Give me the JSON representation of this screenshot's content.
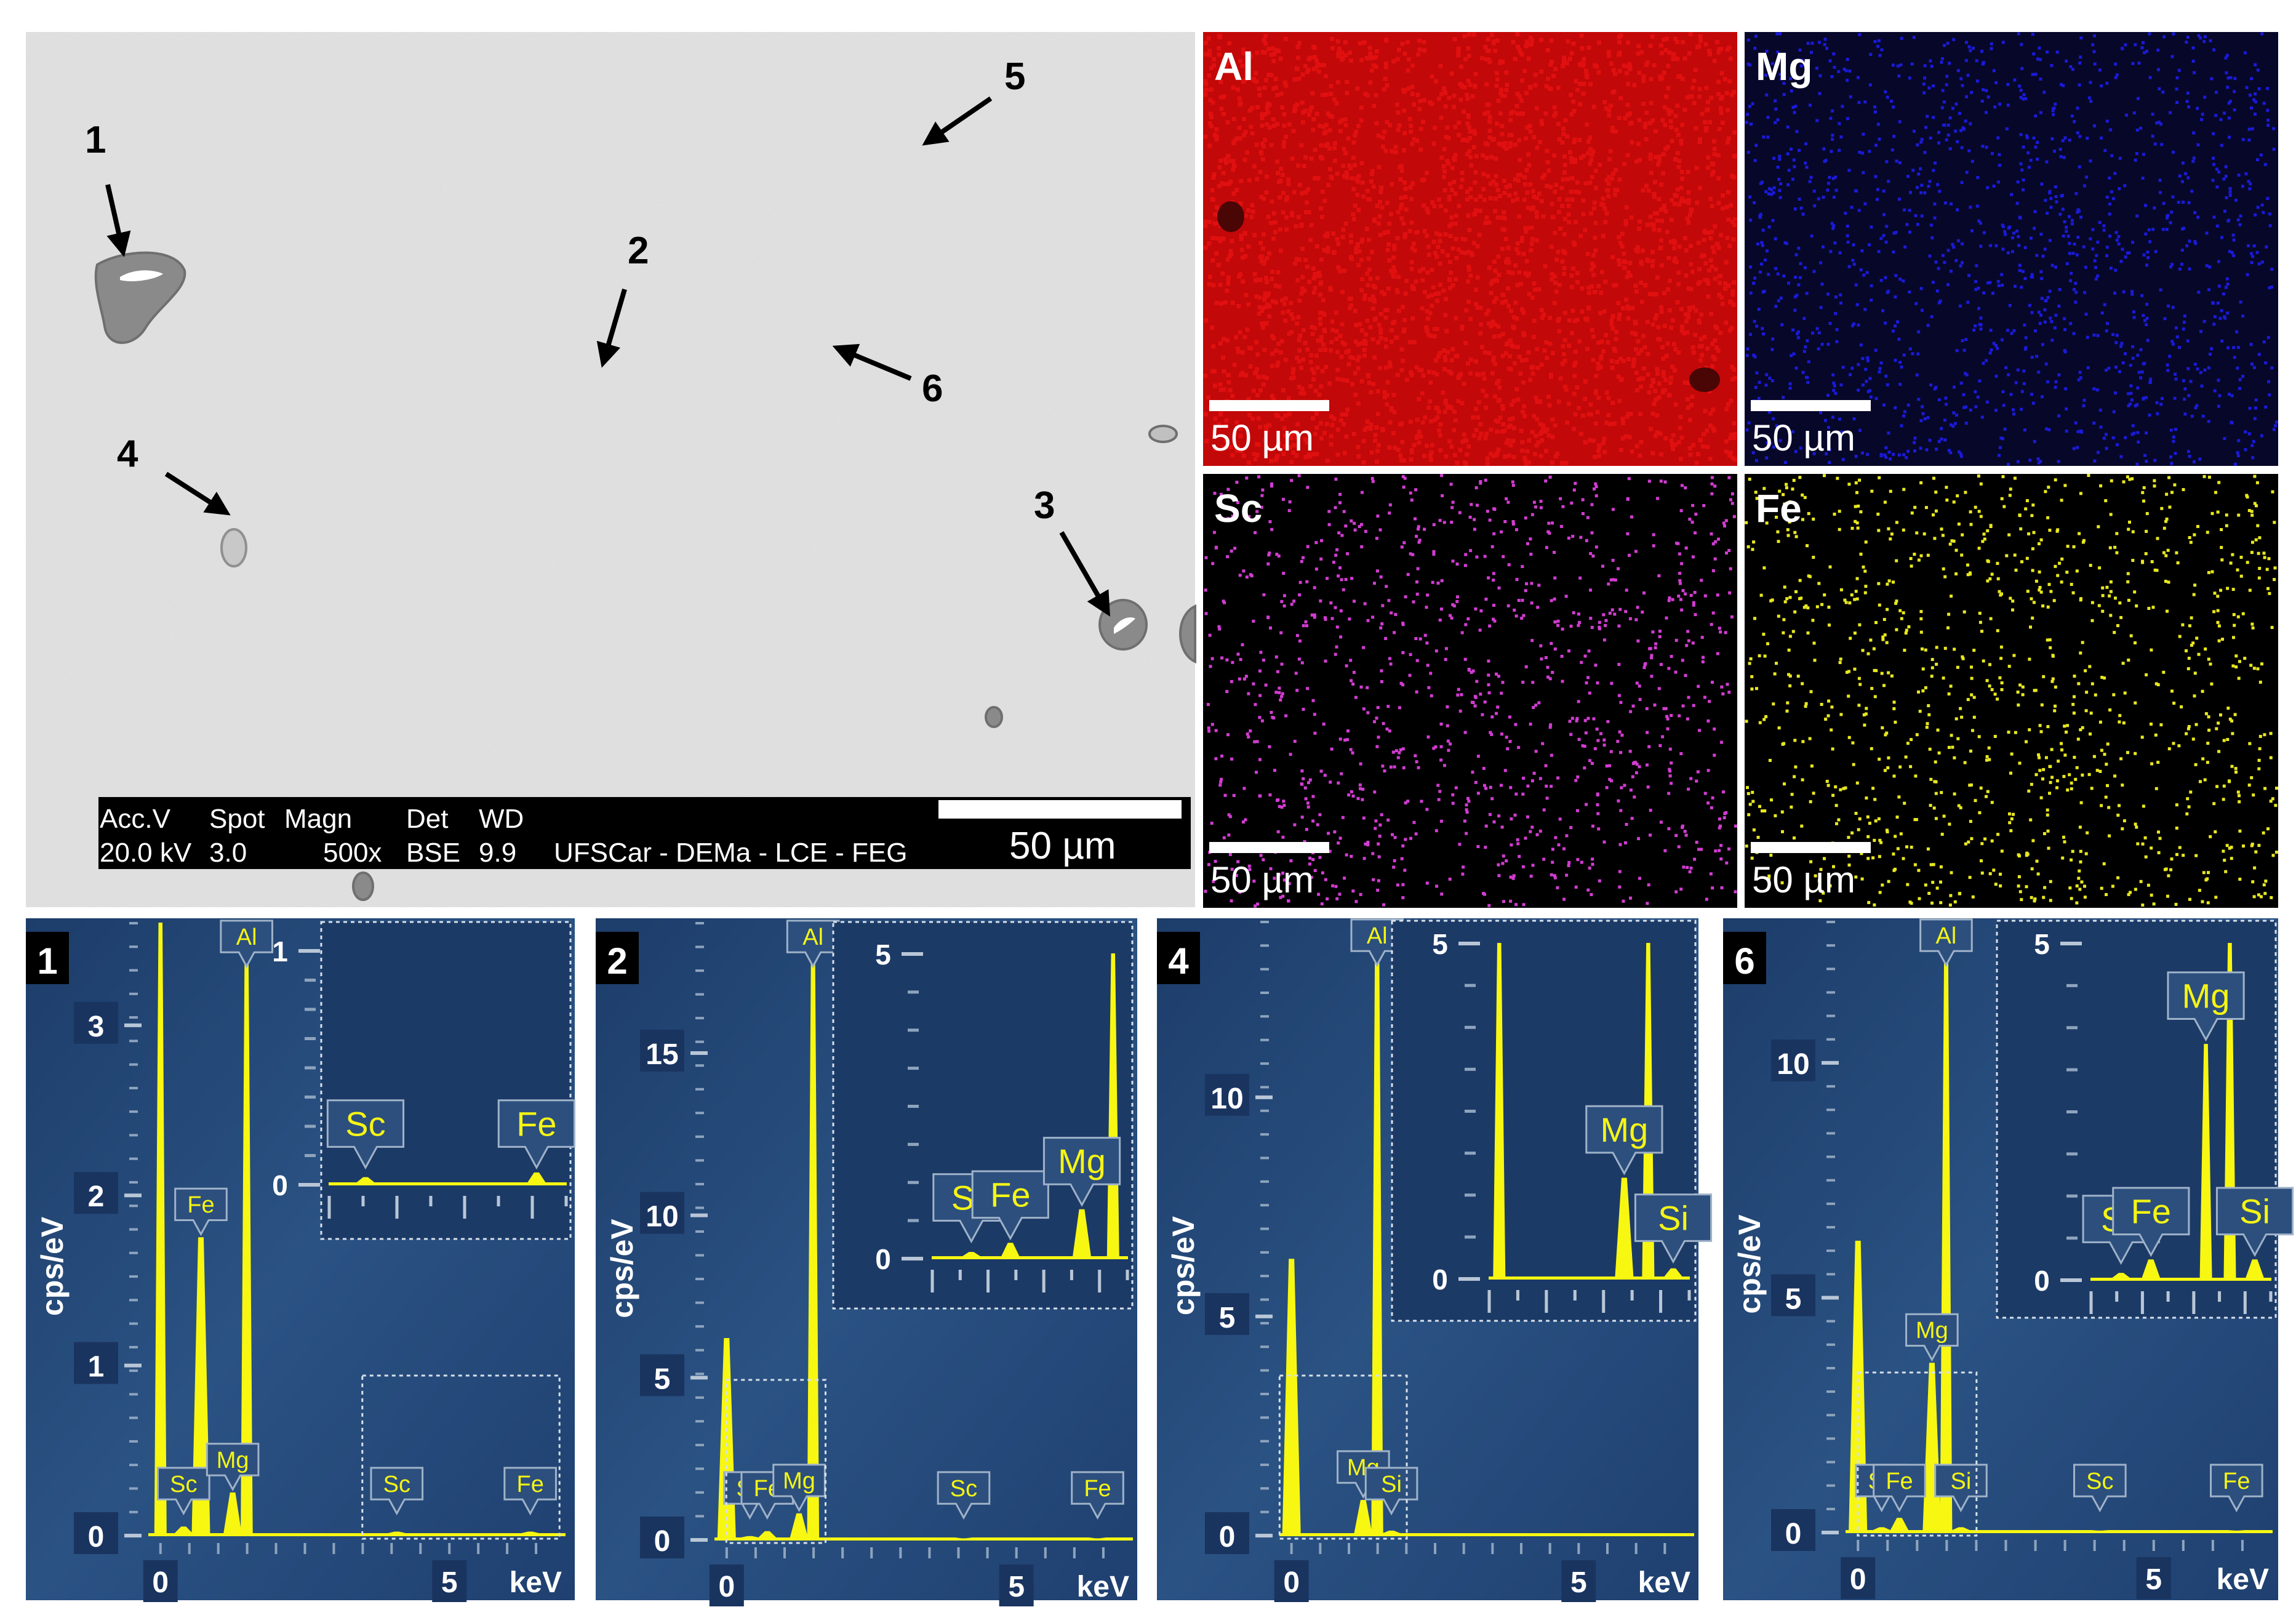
{
  "sem": {
    "markers": [
      "1",
      "2",
      "3",
      "4",
      "5",
      "6"
    ],
    "databar": {
      "headers": [
        "Acc.V",
        "Spot",
        "Magn",
        "Det",
        "WD"
      ],
      "values": [
        "20.0 kV",
        "3.0",
        "500x",
        "BSE",
        "9.9"
      ],
      "lab": "UFSCar - DEMa - LCE - FEG",
      "scale": "50 µm"
    },
    "colors": {
      "background": "#dcdcdc",
      "particle": "#8a8a8a"
    }
  },
  "maps": [
    {
      "element": "Al",
      "scale": "50 µm",
      "color": "#e01010",
      "bg": "#c20808"
    },
    {
      "element": "Mg",
      "scale": "50 µm",
      "color": "#1a1ad8",
      "bg": "#07072a"
    },
    {
      "element": "Sc",
      "scale": "50 µm",
      "color": "#d23cd2",
      "bg": "#000000"
    },
    {
      "element": "Fe",
      "scale": "50 µm",
      "color": "#e8e820",
      "bg": "#000000"
    }
  ],
  "chart_data": [
    {
      "type": "line",
      "panel": "1",
      "xlabel": "keV",
      "ylabel": "cps/eV",
      "x_ticks": [
        "0",
        "5"
      ],
      "xlim": [
        -0.2,
        7.0
      ],
      "ylim": [
        0,
        3.6
      ],
      "y_ticks": [
        "0",
        "1",
        "2",
        "3"
      ],
      "peaks": [
        {
          "label": "",
          "energy": 0.0,
          "height": 3.6
        },
        {
          "label": "Sc",
          "energy": 0.4,
          "height": 0.05
        },
        {
          "label": "Fe",
          "energy": 0.7,
          "height": 1.75
        },
        {
          "label": "Mg",
          "energy": 1.25,
          "height": 0.25
        },
        {
          "label": "Al",
          "energy": 1.49,
          "height": 3.4
        },
        {
          "label": "Sc",
          "energy": 4.09,
          "height": 0.02
        },
        {
          "label": "Fe",
          "energy": 6.4,
          "height": 0.02
        }
      ],
      "inset": {
        "xlim": [
          3.6,
          6.8
        ],
        "ylim": [
          0,
          1.0
        ],
        "y_ticks": [
          "0",
          "1"
        ],
        "peaks": [
          {
            "label": "Sc",
            "energy": 4.09,
            "height": 0.03
          },
          {
            "label": "Fe",
            "energy": 6.4,
            "height": 0.05
          }
        ]
      }
    },
    {
      "type": "line",
      "panel": "2",
      "xlabel": "keV",
      "ylabel": "cps/eV",
      "x_ticks": [
        "0",
        "5"
      ],
      "xlim": [
        -0.2,
        7.0
      ],
      "ylim": [
        0,
        19
      ],
      "y_ticks": [
        "0",
        "5",
        "10",
        "15"
      ],
      "peaks": [
        {
          "label": "",
          "energy": 0.0,
          "height": 6.2
        },
        {
          "label": "Sc",
          "energy": 0.4,
          "height": 0.1
        },
        {
          "label": "Fe",
          "energy": 0.7,
          "height": 0.25
        },
        {
          "label": "Mg",
          "energy": 1.25,
          "height": 0.8
        },
        {
          "label": "Al",
          "energy": 1.49,
          "height": 18.5
        },
        {
          "label": "Sc",
          "energy": 4.09,
          "height": 0.03
        },
        {
          "label": "Fe",
          "energy": 6.4,
          "height": 0.03
        }
      ],
      "inset": {
        "xlim": [
          0.1,
          1.6
        ],
        "ylim": [
          0,
          5.0
        ],
        "y_ticks": [
          "0",
          "5"
        ],
        "peaks": [
          {
            "label": "",
            "energy": 0.0,
            "height": 5.5
          },
          {
            "label": "Sc",
            "energy": 0.4,
            "height": 0.1
          },
          {
            "label": "Fe",
            "energy": 0.7,
            "height": 0.25
          },
          {
            "label": "Mg",
            "energy": 1.25,
            "height": 0.8
          },
          {
            "label": "Al",
            "energy": 1.49,
            "height": 5.5
          }
        ]
      }
    },
    {
      "type": "line",
      "panel": "4",
      "xlabel": "keV",
      "ylabel": "cps/eV",
      "x_ticks": [
        "0",
        "5"
      ],
      "xlim": [
        -0.2,
        7.0
      ],
      "ylim": [
        0,
        14
      ],
      "y_ticks": [
        "0",
        "5",
        "10"
      ],
      "peaks": [
        {
          "label": "",
          "energy": 0.0,
          "height": 6.3
        },
        {
          "label": "Mg",
          "energy": 1.25,
          "height": 0.8
        },
        {
          "label": "Al",
          "energy": 1.49,
          "height": 14
        },
        {
          "label": "Si",
          "energy": 1.74,
          "height": 0.1
        }
      ],
      "inset": {
        "xlim": [
          -0.1,
          1.9
        ],
        "ylim": [
          0,
          5.0
        ],
        "y_ticks": [
          "0",
          "5"
        ],
        "peaks": [
          {
            "label": "",
            "energy": 0.0,
            "height": 5.5
          },
          {
            "label": "Mg",
            "energy": 1.25,
            "height": 1.5
          },
          {
            "label": "Al",
            "energy": 1.49,
            "height": 5.5
          },
          {
            "label": "Si",
            "energy": 1.74,
            "height": 0.15
          }
        ]
      }
    },
    {
      "type": "line",
      "panel": "6",
      "xlabel": "keV",
      "ylabel": "cps/eV",
      "x_ticks": [
        "0",
        "5"
      ],
      "xlim": [
        -0.2,
        7.0
      ],
      "ylim": [
        0,
        13
      ],
      "y_ticks": [
        "0",
        "5",
        "10"
      ],
      "peaks": [
        {
          "label": "",
          "energy": 0.0,
          "height": 6.2
        },
        {
          "label": "Sc",
          "energy": 0.4,
          "height": 0.1
        },
        {
          "label": "Fe",
          "energy": 0.7,
          "height": 0.3
        },
        {
          "label": "Mg",
          "energy": 1.25,
          "height": 3.6
        },
        {
          "label": "Al",
          "energy": 1.49,
          "height": 12.5
        },
        {
          "label": "Si",
          "energy": 1.74,
          "height": 0.1
        },
        {
          "label": "Sc",
          "energy": 4.09,
          "height": 0.03
        },
        {
          "label": "Fe",
          "energy": 6.4,
          "height": 0.03
        }
      ],
      "inset": {
        "xlim": [
          0.1,
          1.9
        ],
        "ylim": [
          0,
          5.0
        ],
        "y_ticks": [
          "0",
          "5"
        ],
        "peaks": [
          {
            "label": "",
            "energy": 0.0,
            "height": 5.5
          },
          {
            "label": "Sc",
            "energy": 0.4,
            "height": 0.1
          },
          {
            "label": "Fe",
            "energy": 0.7,
            "height": 0.3
          },
          {
            "label": "Mg",
            "energy": 1.25,
            "height": 3.5
          },
          {
            "label": "Al",
            "energy": 1.49,
            "height": 5.5
          },
          {
            "label": "Si",
            "energy": 1.74,
            "height": 0.3
          }
        ]
      }
    }
  ]
}
